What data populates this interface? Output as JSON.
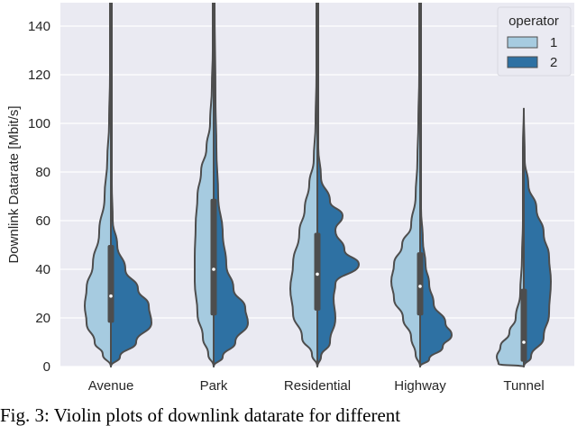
{
  "chart_data": {
    "type": "violin",
    "title": "",
    "xlabel": "",
    "ylabel": "Downlink Datarate [Mbit/s]",
    "ylim": [
      0,
      150
    ],
    "yticks": [
      0,
      20,
      40,
      60,
      80,
      100,
      120,
      140
    ],
    "grid": true,
    "categories": [
      "Avenue",
      "Park",
      "Residential",
      "Highway",
      "Tunnel"
    ],
    "legend": {
      "title": "operator",
      "position": "upper right",
      "entries": [
        {
          "label": "1",
          "color": "#a6cbe0"
        },
        {
          "label": "2",
          "color": "#2e71a3"
        }
      ]
    },
    "split": true,
    "series": [
      {
        "name": "operator 1",
        "side": "left",
        "color": "#a6cbe0",
        "max": [
          150,
          150,
          150,
          150,
          18
        ],
        "mode_approx": [
          25,
          40,
          35,
          35,
          5
        ]
      },
      {
        "name": "operator 2",
        "side": "right",
        "color": "#2e71a3",
        "max": [
          60,
          110,
          70,
          60,
          75
        ],
        "mode_approx": [
          18,
          20,
          42,
          12,
          38
        ]
      }
    ],
    "box": {
      "q1": [
        18,
        21,
        23,
        21,
        2
      ],
      "median": [
        29,
        40,
        38,
        33,
        10
      ],
      "q3": [
        50,
        69,
        55,
        47,
        32
      ],
      "whisker_high": [
        150,
        150,
        150,
        150,
        106
      ]
    }
  },
  "caption": "Fig. 3: Violin plots of downlink datarate for different"
}
